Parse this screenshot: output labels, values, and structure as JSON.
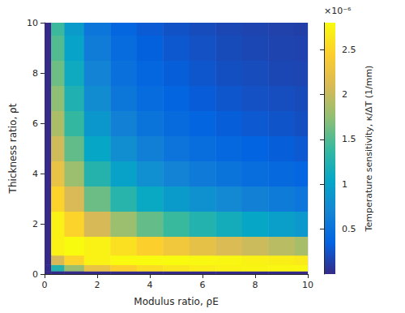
{
  "chart_data": {
    "type": "heatmap",
    "x_label": "Modulus ratio, ρE",
    "y_label": "Thickness ratio, ρt",
    "x": [
      0,
      0.5,
      1,
      2,
      3,
      4,
      5,
      6,
      7,
      8,
      9,
      10
    ],
    "y": [
      0,
      0.25,
      0.5,
      1,
      2,
      3,
      4,
      5,
      6,
      7,
      8,
      9,
      10
    ],
    "values": [
      [
        0,
        0,
        0,
        0,
        0,
        0,
        0,
        0,
        0,
        0,
        0,
        0
      ],
      [
        0,
        1.27,
        1.8,
        2.25,
        2.46,
        2.57,
        2.64,
        2.69,
        2.73,
        2.75,
        2.77,
        2.78
      ],
      [
        0,
        2.09,
        2.49,
        2.73,
        2.79,
        2.81,
        2.8,
        2.78,
        2.76,
        2.73,
        2.7,
        2.67
      ],
      [
        0,
        2.72,
        2.81,
        2.72,
        2.59,
        2.46,
        2.34,
        2.23,
        2.12,
        2.03,
        1.94,
        1.86
      ],
      [
        0,
        2.73,
        2.49,
        2.09,
        1.8,
        1.57,
        1.4,
        1.26,
        1.15,
        1.05,
        0.97,
        0.9
      ],
      [
        0,
        2.49,
        2.1,
        1.6,
        1.29,
        1.08,
        0.93,
        0.82,
        0.73,
        0.66,
        0.6,
        0.55
      ],
      [
        0,
        2.25,
        1.8,
        1.27,
        0.99,
        0.81,
        0.68,
        0.59,
        0.52,
        0.46,
        0.42,
        0.38
      ],
      [
        0,
        2.05,
        1.56,
        1.05,
        0.79,
        0.64,
        0.53,
        0.46,
        0.4,
        0.36,
        0.32,
        0.29
      ],
      [
        0,
        1.88,
        1.37,
        0.89,
        0.66,
        0.52,
        0.43,
        0.37,
        0.32,
        0.29,
        0.26,
        0.23
      ],
      [
        0,
        1.74,
        1.23,
        0.77,
        0.56,
        0.44,
        0.37,
        0.31,
        0.27,
        0.24,
        0.22,
        0.2
      ],
      [
        0,
        1.61,
        1.11,
        0.68,
        0.49,
        0.39,
        0.32,
        0.27,
        0.23,
        0.21,
        0.18,
        0.17
      ],
      [
        0,
        1.5,
        1.01,
        0.61,
        0.44,
        0.34,
        0.28,
        0.24,
        0.2,
        0.18,
        0.16,
        0.15
      ],
      [
        0,
        1.41,
        0.93,
        0.55,
        0.39,
        0.3,
        0.25,
        0.21,
        0.18,
        0.16,
        0.14,
        0.13
      ]
    ],
    "xlim": [
      0,
      10
    ],
    "xticks": [
      0,
      2,
      4,
      6,
      8,
      10
    ],
    "ylim": [
      0,
      10
    ],
    "yticks": [
      0,
      2,
      4,
      6,
      8,
      10
    ],
    "colorbar": {
      "label": "Temperature sensitivity, κ/ΔT (1/mm)",
      "multiplier": "×10⁻⁶",
      "range": [
        0,
        2.8
      ],
      "ticks": [
        0.5,
        1,
        1.5,
        2,
        2.5
      ]
    },
    "grid": true
  }
}
